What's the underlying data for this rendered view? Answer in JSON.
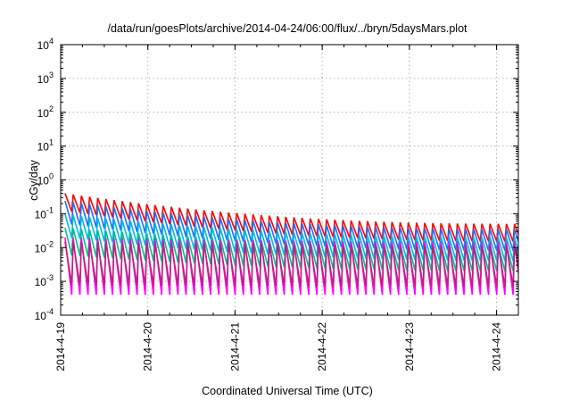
{
  "chart_data": {
    "type": "line",
    "title": "/data/run/goesPlots/archive/2014-04-24/06:00/flux/../bryn/5daysMars.plot",
    "xlabel": "Coordinated Universal Time (UTC)",
    "ylabel": "cGy/day",
    "y_scale": "log",
    "ylim": [
      0.0001,
      10000
    ],
    "y_ticks": [
      {
        "value": 0.0001,
        "base": "10",
        "exp": "-4"
      },
      {
        "value": 0.001,
        "base": "10",
        "exp": "-3"
      },
      {
        "value": 0.01,
        "base": "10",
        "exp": "-2"
      },
      {
        "value": 0.1,
        "base": "10",
        "exp": "-1"
      },
      {
        "value": 1,
        "base": "10",
        "exp": "0"
      },
      {
        "value": 10,
        "base": "10",
        "exp": "1"
      },
      {
        "value": 100,
        "base": "10",
        "exp": "2"
      },
      {
        "value": 1000,
        "base": "10",
        "exp": "3"
      },
      {
        "value": 10000,
        "base": "10",
        "exp": "4"
      }
    ],
    "x_ticks": [
      {
        "value": "2014-04-19",
        "label": "2014-4-19"
      },
      {
        "value": "2014-04-20",
        "label": "2014-4-20"
      },
      {
        "value": "2014-04-21",
        "label": "2014-4-21"
      },
      {
        "value": "2014-04-22",
        "label": "2014-4-22"
      },
      {
        "value": "2014-04-23",
        "label": "2014-4-23"
      },
      {
        "value": "2014-04-24",
        "label": "2014-4-24"
      }
    ],
    "xlim": [
      "2014-04-19T00:00",
      "2014-04-24T06:00"
    ],
    "grid": true,
    "sawtooth_period_hours": 2.25,
    "series": [
      {
        "color": "#ff0000",
        "peak": [
          0.42,
          0.05
        ],
        "trough": [
          0.12,
          0.015
        ]
      },
      {
        "color": "#1e6fff",
        "peak": [
          0.25,
          0.035
        ],
        "trough": [
          0.05,
          0.008
        ]
      },
      {
        "color": "#00b8e8",
        "peak": [
          0.1,
          0.02
        ],
        "trough": [
          0.02,
          0.004
        ]
      },
      {
        "color": "#00c08a",
        "peak": [
          0.04,
          0.012
        ],
        "trough": [
          0.006,
          0.002
        ]
      },
      {
        "color": "#ff00ff",
        "peak": [
          0.02,
          0.015
        ],
        "trough": [
          0.0004,
          0.0004
        ]
      },
      {
        "color": "#c0207a",
        "peak": [
          0.015,
          0.012
        ],
        "trough": [
          0.0008,
          0.0007
        ]
      }
    ]
  }
}
